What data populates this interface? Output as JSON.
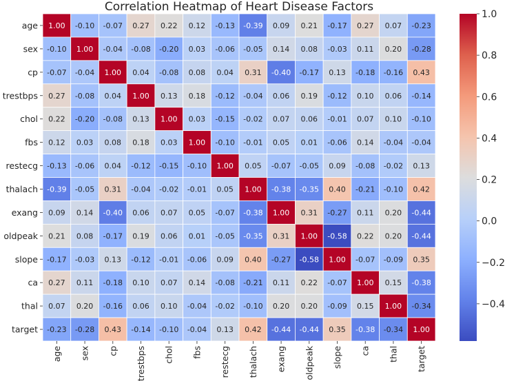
{
  "chart_data": {
    "type": "heatmap",
    "title": "Correlation Heatmap of Heart Disease Factors",
    "variables": [
      "age",
      "sex",
      "cp",
      "trestbps",
      "chol",
      "fbs",
      "restecg",
      "thalach",
      "exang",
      "oldpeak",
      "slope",
      "ca",
      "thal",
      "target"
    ],
    "matrix": [
      [
        1.0,
        -0.1,
        -0.07,
        0.27,
        0.22,
        0.12,
        -0.13,
        -0.39,
        0.09,
        0.21,
        -0.17,
        0.27,
        0.07,
        -0.23
      ],
      [
        -0.1,
        1.0,
        -0.04,
        -0.08,
        -0.2,
        0.03,
        -0.06,
        -0.05,
        0.14,
        0.08,
        -0.03,
        0.11,
        0.2,
        -0.28
      ],
      [
        -0.07,
        -0.04,
        1.0,
        0.04,
        -0.08,
        0.08,
        0.04,
        0.31,
        -0.4,
        -0.17,
        0.13,
        -0.18,
        -0.16,
        0.43
      ],
      [
        0.27,
        -0.08,
        0.04,
        1.0,
        0.13,
        0.18,
        -0.12,
        -0.04,
        0.06,
        0.19,
        -0.12,
        0.1,
        0.06,
        -0.14
      ],
      [
        0.22,
        -0.2,
        -0.08,
        0.13,
        1.0,
        0.03,
        -0.15,
        -0.02,
        0.07,
        0.06,
        -0.01,
        0.07,
        0.1,
        -0.1
      ],
      [
        0.12,
        0.03,
        0.08,
        0.18,
        0.03,
        1.0,
        -0.1,
        -0.01,
        0.05,
        0.01,
        -0.06,
        0.14,
        -0.04,
        -0.04
      ],
      [
        -0.13,
        -0.06,
        0.04,
        -0.12,
        -0.15,
        -0.1,
        1.0,
        0.05,
        -0.07,
        -0.05,
        0.09,
        -0.08,
        -0.02,
        0.13
      ],
      [
        -0.39,
        -0.05,
        0.31,
        -0.04,
        -0.02,
        -0.01,
        0.05,
        1.0,
        -0.38,
        -0.35,
        0.4,
        -0.21,
        -0.1,
        0.42
      ],
      [
        0.09,
        0.14,
        -0.4,
        0.06,
        0.07,
        0.05,
        -0.07,
        -0.38,
        1.0,
        0.31,
        -0.27,
        0.11,
        0.2,
        -0.44
      ],
      [
        0.21,
        0.08,
        -0.17,
        0.19,
        0.06,
        0.01,
        -0.05,
        -0.35,
        0.31,
        1.0,
        -0.58,
        0.22,
        0.2,
        -0.44
      ],
      [
        -0.17,
        -0.03,
        0.13,
        -0.12,
        -0.01,
        -0.06,
        0.09,
        0.4,
        -0.27,
        -0.58,
        1.0,
        -0.07,
        -0.09,
        0.35
      ],
      [
        0.27,
        0.11,
        -0.18,
        0.1,
        0.07,
        0.14,
        -0.08,
        -0.21,
        0.11,
        0.22,
        -0.07,
        1.0,
        0.15,
        -0.38
      ],
      [
        0.07,
        0.2,
        -0.16,
        0.06,
        0.1,
        -0.04,
        -0.02,
        -0.1,
        0.2,
        0.2,
        -0.09,
        0.15,
        1.0,
        -0.34
      ],
      [
        -0.23,
        -0.28,
        0.43,
        -0.14,
        -0.1,
        -0.04,
        0.13,
        0.42,
        -0.44,
        -0.44,
        0.35,
        -0.38,
        -0.34,
        1.0
      ]
    ],
    "colormap": "coolwarm",
    "value_range": [
      -0.58,
      1.0
    ],
    "colorbar_ticks": [
      "1.0",
      "0.8",
      "0.6",
      "0.4",
      "0.2",
      "0.0",
      "−0.2",
      "−0.4"
    ],
    "colorbar_tick_values": [
      1.0,
      0.8,
      0.6,
      0.4,
      0.2,
      0.0,
      -0.2,
      -0.4
    ],
    "annotation_format": "2 decimals"
  }
}
